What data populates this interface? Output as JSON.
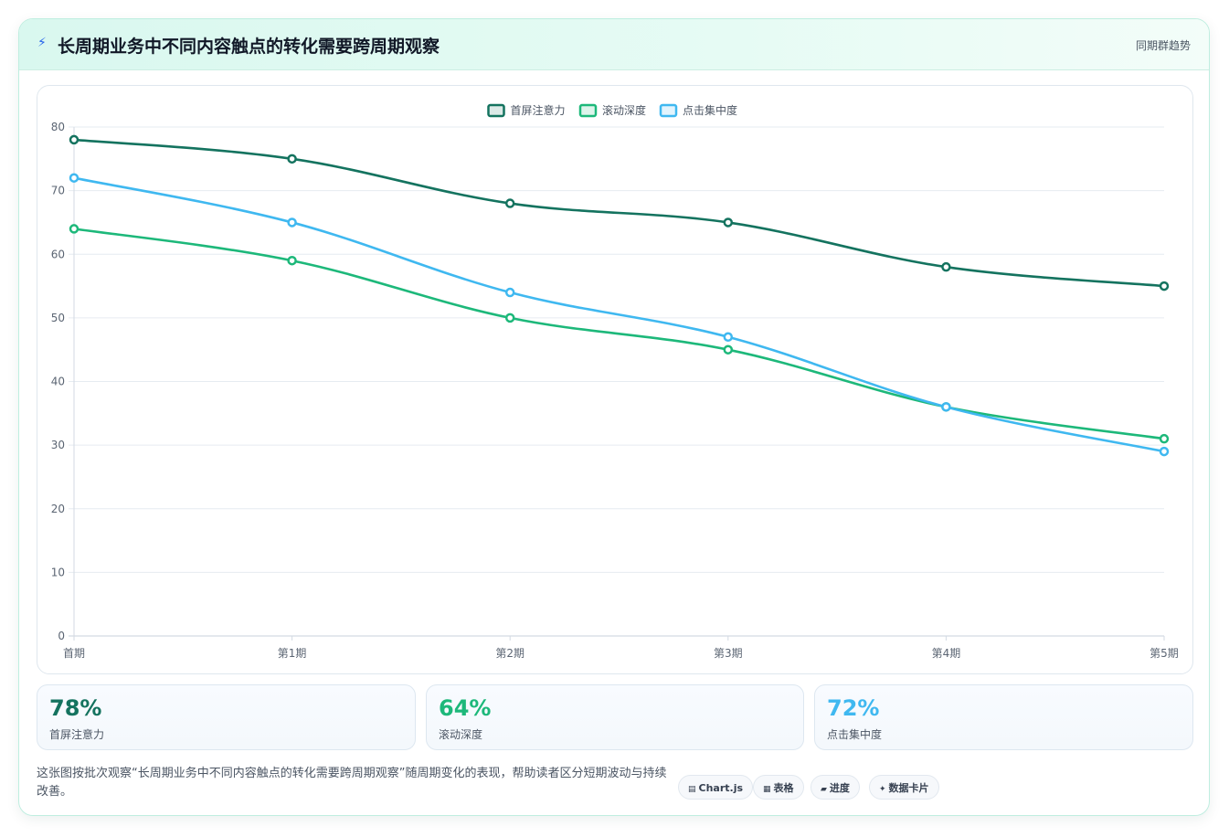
{
  "header": {
    "title": "长周期业务中不同内容触点的转化需要跨周期观察",
    "tag": "同期群趋势",
    "icon": "bolt-icon"
  },
  "chart_data": {
    "type": "line",
    "categories": [
      "首期",
      "第1期",
      "第2期",
      "第3期",
      "第4期",
      "第5期"
    ],
    "series": [
      {
        "name": "首屏注意力",
        "color": "#14735f",
        "values": [
          78,
          75,
          68,
          65,
          58,
          55
        ]
      },
      {
        "name": "滚动深度",
        "color": "#1db87a",
        "values": [
          64,
          59,
          50,
          45,
          36,
          31
        ]
      },
      {
        "name": "点击集中度",
        "color": "#3fb8f0",
        "values": [
          72,
          65,
          54,
          47,
          36,
          29
        ]
      }
    ],
    "ylim": [
      0,
      80
    ],
    "yticks": [
      0,
      10,
      20,
      30,
      40,
      50,
      60,
      70,
      80
    ],
    "grid": true,
    "legend": "top-center"
  },
  "stats": [
    {
      "value": "78%",
      "label": "首屏注意力",
      "color": "#14735f"
    },
    {
      "value": "64%",
      "label": "滚动深度",
      "color": "#1db87a"
    },
    {
      "value": "72%",
      "label": "点击集中度",
      "color": "#3fb8f0"
    }
  ],
  "footnote": "这张图按批次观察“长周期业务中不同内容触点的转化需要跨周期观察”随周期变化的表现，帮助读者区分短期波动与持续改善。",
  "chips": [
    {
      "icon": "▤",
      "label": "Chart.js"
    },
    {
      "icon": "▦",
      "label": "表格"
    },
    {
      "icon": "▰",
      "label": "进度"
    },
    {
      "icon": "✦",
      "label": "数据卡片"
    }
  ]
}
